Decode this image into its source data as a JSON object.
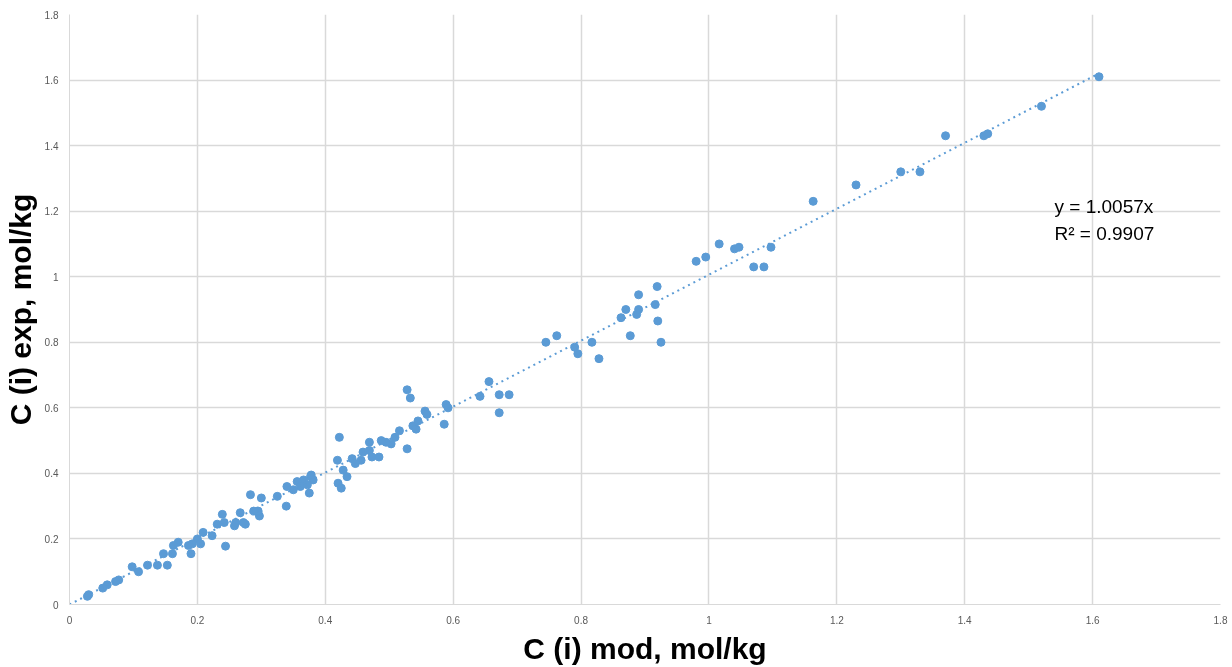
{
  "chart_data": {
    "type": "scatter",
    "xlabel": "C (i) mod, mol/kg",
    "ylabel": "C (i) exp, mol/kg",
    "xlim": [
      0,
      1.8
    ],
    "ylim": [
      0,
      1.8
    ],
    "xticks": [
      0,
      0.2,
      0.4,
      0.6,
      0.8,
      1,
      1.2,
      1.4,
      1.6,
      1.8
    ],
    "yticks": [
      0,
      0.2,
      0.4,
      0.6,
      0.8,
      1,
      1.2,
      1.4,
      1.6,
      1.8
    ],
    "grid": true,
    "annotations": [
      "y = 1.0057x",
      "R² = 0.9907"
    ],
    "series": [
      {
        "color": "#5b9bd5",
        "marker": "circle",
        "x": [
          1.163,
          1.23,
          1.3,
          1.33,
          1.37,
          1.43,
          1.436,
          1.52,
          1.61,
          0.98,
          0.995,
          1.016,
          1.04,
          1.047,
          1.097,
          1.07,
          1.086,
          0.8625,
          0.87,
          0.89,
          0.887,
          0.89,
          0.919,
          0.916,
          0.92,
          0.877,
          0.925,
          0.745,
          0.762,
          0.79,
          0.795,
          0.817,
          0.828,
          0.642,
          0.656,
          0.672,
          0.6875,
          0.672,
          0.528,
          0.533,
          0.589,
          0.592,
          0.586,
          0.556,
          0.559,
          0.545,
          0.537,
          0.542,
          0.516,
          0.509,
          0.503,
          0.495,
          0.4875,
          0.528,
          0.469,
          0.469,
          0.459,
          0.484,
          0.473,
          0.456,
          0.442,
          0.447,
          0.422,
          0.419,
          0.428,
          0.434,
          0.42,
          0.425,
          0.377,
          0.381,
          0.366,
          0.356,
          0.375,
          0.361,
          0.378,
          0.372,
          0.35,
          0.34,
          0.339,
          0.325,
          0.3,
          0.297,
          0.295,
          0.283,
          0.288,
          0.275,
          0.272,
          0.258,
          0.26,
          0.267,
          0.239,
          0.242,
          0.244,
          0.231,
          0.223,
          0.209,
          0.2,
          0.205,
          0.192,
          0.186,
          0.19,
          0.17,
          0.1625,
          0.161,
          0.147,
          0.153,
          0.1375,
          0.122,
          0.108,
          0.098,
          0.077,
          0.072,
          0.059,
          0.052,
          0.03,
          0.028
        ],
        "values": [
          1.23,
          1.28,
          1.32,
          1.32,
          1.43,
          1.43,
          1.436,
          1.52,
          1.61,
          1.047,
          1.06,
          1.1,
          1.085,
          1.09,
          1.09,
          1.03,
          1.03,
          0.875,
          0.9,
          0.945,
          0.885,
          0.9,
          0.97,
          0.915,
          0.865,
          0.82,
          0.8,
          0.8,
          0.82,
          0.785,
          0.765,
          0.8,
          0.75,
          0.635,
          0.68,
          0.64,
          0.64,
          0.585,
          0.655,
          0.63,
          0.61,
          0.6,
          0.55,
          0.59,
          0.58,
          0.56,
          0.545,
          0.535,
          0.53,
          0.51,
          0.49,
          0.495,
          0.5,
          0.475,
          0.495,
          0.47,
          0.465,
          0.45,
          0.45,
          0.44,
          0.445,
          0.43,
          0.51,
          0.44,
          0.41,
          0.39,
          0.37,
          0.355,
          0.39,
          0.38,
          0.38,
          0.375,
          0.34,
          0.36,
          0.395,
          0.365,
          0.35,
          0.36,
          0.3,
          0.33,
          0.325,
          0.27,
          0.285,
          0.335,
          0.285,
          0.245,
          0.25,
          0.24,
          0.25,
          0.28,
          0.275,
          0.25,
          0.178,
          0.245,
          0.21,
          0.22,
          0.2,
          0.185,
          0.185,
          0.18,
          0.155,
          0.19,
          0.18,
          0.155,
          0.155,
          0.12,
          0.12,
          0.12,
          0.1,
          0.115,
          0.075,
          0.07,
          0.06,
          0.05,
          0.03,
          0.025
        ]
      },
      {
        "type": "line",
        "color": "#5b9bd5",
        "line_style": "dotted",
        "x": [
          0,
          1.61
        ],
        "values": [
          0,
          1.62
        ]
      }
    ]
  }
}
